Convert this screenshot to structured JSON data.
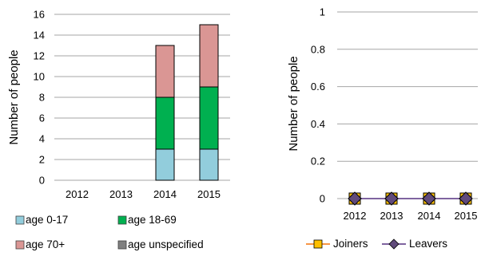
{
  "chart_data": [
    {
      "type": "bar",
      "stacked": true,
      "title": "",
      "xlabel": "",
      "ylabel": "Number of people",
      "ylim": [
        0,
        16
      ],
      "yticks": [
        0,
        2,
        4,
        6,
        8,
        10,
        12,
        14,
        16
      ],
      "grid": true,
      "legend": "bottom",
      "categories": [
        "2012",
        "2013",
        "2014",
        "2015"
      ],
      "series": [
        {
          "name": "age 0-17",
          "values": [
            0,
            0,
            3,
            3
          ],
          "color": "#92cddc"
        },
        {
          "name": "age 18-69",
          "values": [
            0,
            0,
            5,
            6
          ],
          "color": "#00b050"
        },
        {
          "name": "age 70+",
          "values": [
            0,
            0,
            5,
            6
          ],
          "color": "#da9694"
        },
        {
          "name": "age unspecified",
          "values": [
            0,
            0,
            0,
            0
          ],
          "color": "#808080"
        }
      ]
    },
    {
      "type": "line",
      "title": "",
      "xlabel": "",
      "ylabel": "Number of people",
      "ylim": [
        0,
        1
      ],
      "yticks": [
        "0",
        "0.2",
        "0.4",
        "0.6",
        "0.8",
        "1"
      ],
      "grid": true,
      "legend": "bottom",
      "categories": [
        "2012",
        "2013",
        "2014",
        "2015"
      ],
      "series": [
        {
          "name": "Joiners",
          "values": [
            0,
            0,
            0,
            0
          ],
          "color": "#f79646",
          "marker_fill": "#ffc000",
          "marker": "square"
        },
        {
          "name": "Leavers",
          "values": [
            0,
            0,
            0,
            0
          ],
          "color": "#7f64a0",
          "marker_fill": "#604a7b",
          "marker": "diamond"
        }
      ]
    }
  ]
}
